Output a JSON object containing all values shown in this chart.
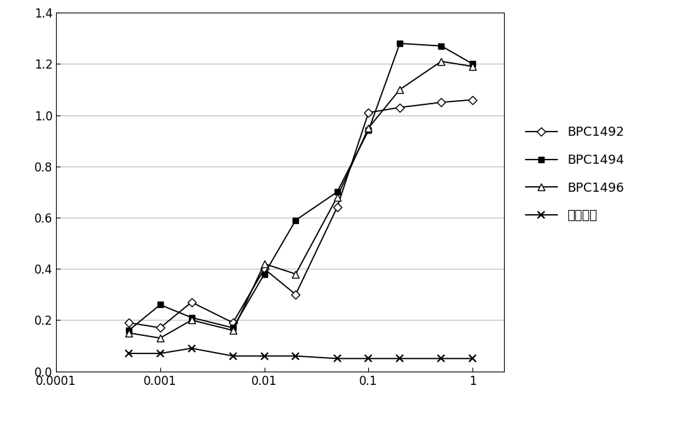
{
  "x_values": [
    0.0005,
    0.001,
    0.002,
    0.005,
    0.01,
    0.02,
    0.05,
    0.1,
    0.2,
    0.5,
    1.0
  ],
  "BPC1492": [
    0.19,
    0.17,
    0.27,
    0.19,
    0.4,
    0.3,
    0.64,
    1.01,
    1.03,
    1.05,
    1.06
  ],
  "BPC1494": [
    0.16,
    0.26,
    0.21,
    0.17,
    0.38,
    0.59,
    0.7,
    0.94,
    1.28,
    1.27,
    1.2
  ],
  "BPC1496": [
    0.15,
    0.13,
    0.2,
    0.16,
    0.42,
    0.38,
    0.68,
    0.95,
    1.1,
    1.21,
    1.19
  ],
  "neg_ctrl": [
    0.07,
    0.07,
    0.09,
    0.06,
    0.06,
    0.06,
    0.05,
    0.05,
    0.05,
    0.05,
    0.05
  ],
  "legend_labels": [
    "BPC1492",
    "BPC1494",
    "BPC1496",
    "阴性对照"
  ],
  "ylim": [
    0,
    1.4
  ],
  "xlim": [
    0.0001,
    2.0
  ],
  "yticks": [
    0,
    0.2,
    0.4,
    0.6,
    0.8,
    1.0,
    1.2,
    1.4
  ],
  "xticks": [
    0.0001,
    0.001,
    0.01,
    0.1,
    1
  ],
  "xtick_labels": [
    "0.0001",
    "0.001",
    "0.01",
    "0.1",
    "1"
  ],
  "bg_color": "#ffffff",
  "grid_color": "#bbbbbb",
  "line_color": "#000000",
  "figsize": [
    10.0,
    6.03
  ],
  "dpi": 100
}
